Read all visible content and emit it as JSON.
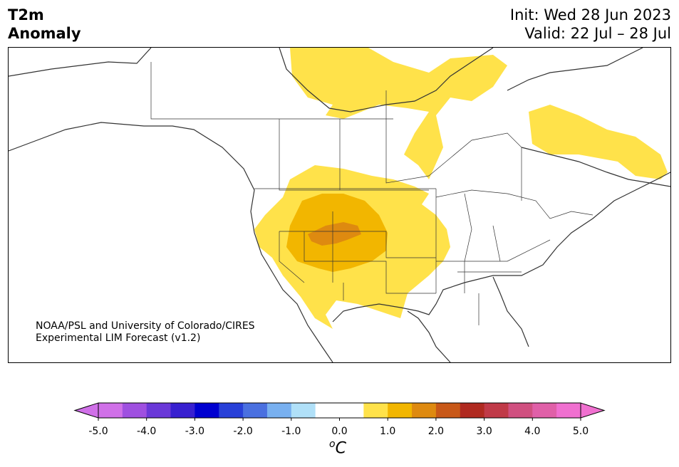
{
  "header": {
    "variable": "T2m",
    "field": "Anomaly",
    "init": "Init: Wed 28 Jun 2023",
    "valid": "Valid: 22 Jul – 28 Jul"
  },
  "credit": {
    "line1": "NOAA/PSL and University of Colorado/CIRES",
    "line2": "Experimental LIM Forecast (v1.2)"
  },
  "colorbar": {
    "unit_base": "C",
    "unit_sup": "o",
    "ticks": [
      "-5.0",
      "-4.0",
      "-3.0",
      "-2.0",
      "-1.0",
      "0.0",
      "1.0",
      "2.0",
      "3.0",
      "4.0",
      "5.0"
    ],
    "colors": [
      "#d070e8",
      "#9f50e0",
      "#6a38d8",
      "#3820d0",
      "#0000d0",
      "#2840d8",
      "#4a70e0",
      "#78b0f0",
      "#b0e0f8",
      "#ffffff",
      "#ffffff",
      "#ffe24a",
      "#f2b600",
      "#de8a10",
      "#c85818",
      "#b02a20",
      "#c03a48",
      "#d05080",
      "#e060a8",
      "#f070d0"
    ],
    "under_color": "#d070e8",
    "over_color": "#f070d0"
  },
  "map": {
    "land_color": "#fffef8",
    "warm_anomaly_levels": [
      "0.5 to 1.0",
      "1.0 to 1.5",
      "1.5 to 2.0"
    ]
  }
}
